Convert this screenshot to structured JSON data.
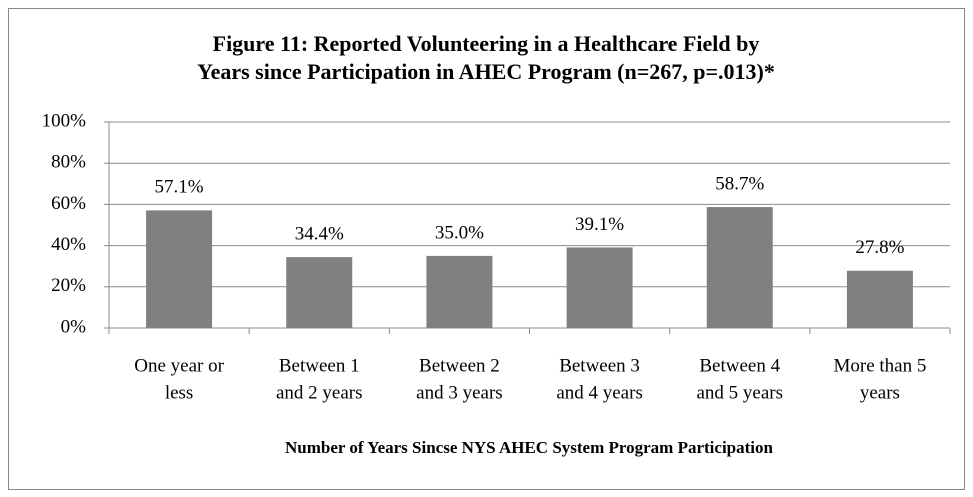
{
  "chart_data": {
    "type": "bar",
    "title": [
      "Figure 11: Reported Volunteering in a Healthcare Field by",
      "Years since Participation in AHEC Program (n=267, p=.013)*"
    ],
    "x_label": "Number of Years Sincse NYS AHEC System Program Participation",
    "categories": [
      [
        "One year or",
        "less"
      ],
      [
        "Between 1",
        "and 2 years"
      ],
      [
        "Between 2",
        "and 3 years"
      ],
      [
        "Between 3",
        "and 4 years"
      ],
      [
        "Between 4",
        "and 5 years"
      ],
      [
        "More than 5",
        "years"
      ]
    ],
    "values": [
      57.1,
      34.4,
      35.0,
      39.1,
      58.7,
      27.8
    ],
    "value_labels": [
      "57.1%",
      "34.4%",
      "35.0%",
      "39.1%",
      "58.7%",
      "27.8%"
    ],
    "color": "#808080",
    "ylim": [
      0,
      100
    ],
    "yticks": [
      {
        "value": 0,
        "label": "0%"
      },
      {
        "value": 20,
        "label": "20%"
      },
      {
        "value": 40,
        "label": "40%"
      },
      {
        "value": 60,
        "label": "60%"
      },
      {
        "value": 80,
        "label": "80%"
      },
      {
        "value": 100,
        "label": "100%"
      }
    ],
    "grid": true
  }
}
